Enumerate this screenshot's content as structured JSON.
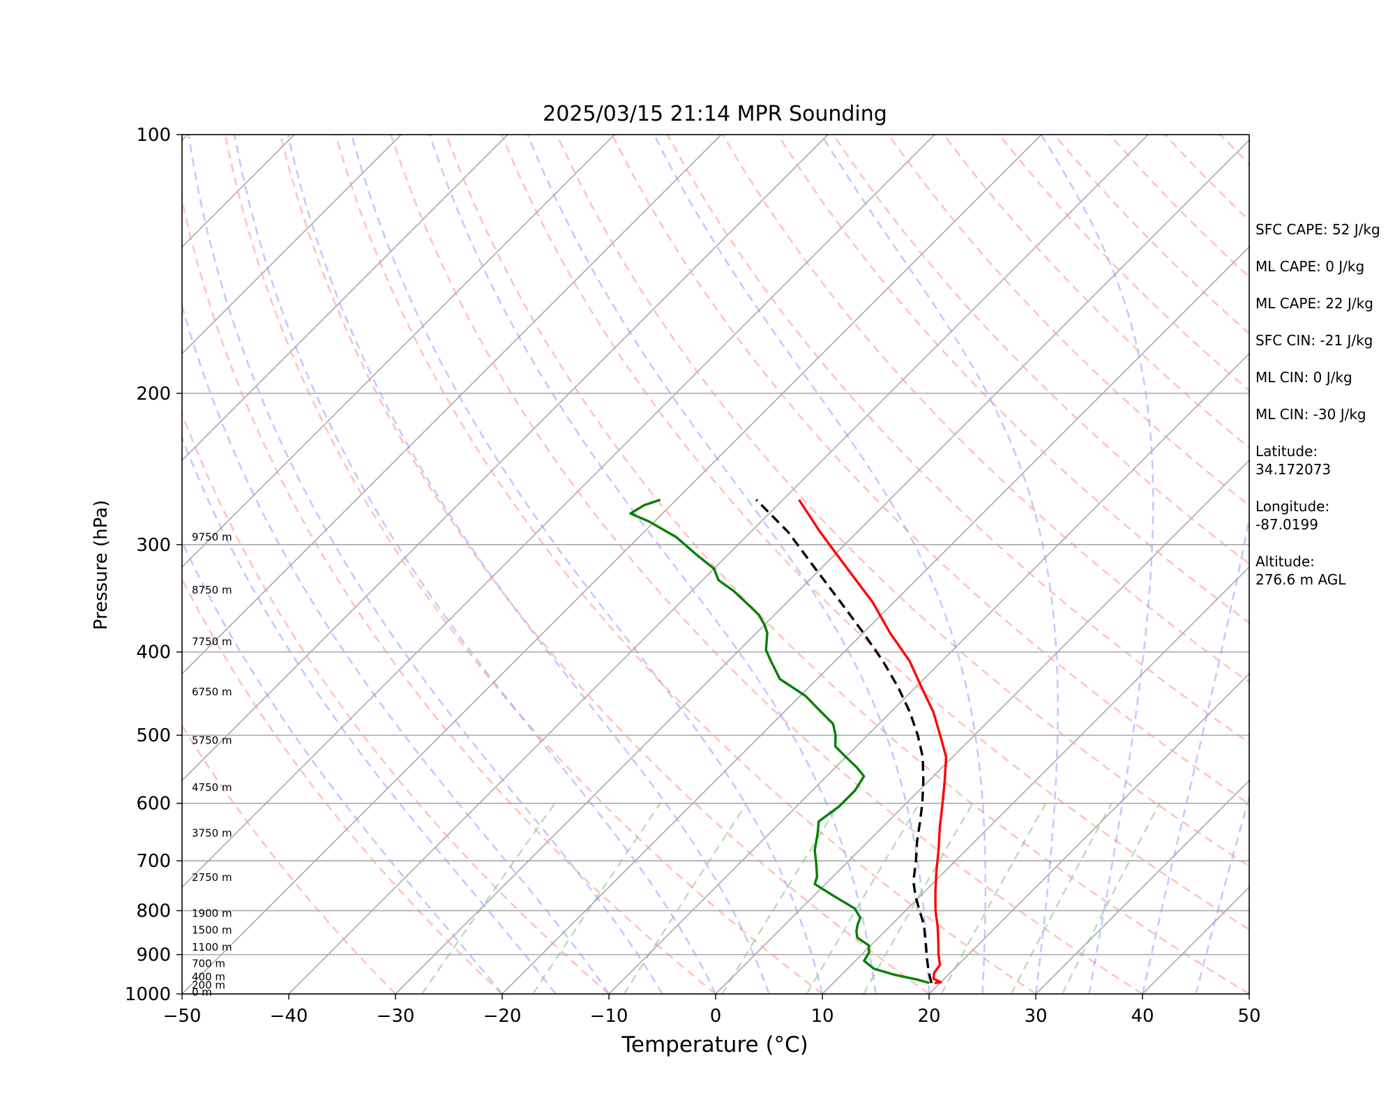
{
  "chart_data": {
    "type": "line",
    "title": "2025/03/15 21:14 MPR Sounding",
    "xlabel": "Temperature (°C)",
    "ylabel": "Pressure (hPa)",
    "xlim": [
      -50,
      50
    ],
    "ylim": [
      1000,
      100
    ],
    "y_scale": "log",
    "skew": true,
    "grid": true,
    "x_ticks": [
      "−50",
      "−40",
      "−30",
      "−20",
      "−10",
      "0",
      "10",
      "20",
      "30",
      "40",
      "50"
    ],
    "y_ticks": [
      "100",
      "200",
      "300",
      "400",
      "500",
      "600",
      "700",
      "800",
      "900",
      "1000"
    ],
    "height_labels": [
      {
        "label": "0 m",
        "p": 995
      },
      {
        "label": "200 m",
        "p": 977
      },
      {
        "label": "400 m",
        "p": 955
      },
      {
        "label": "700 m",
        "p": 922
      },
      {
        "label": "1100 m",
        "p": 882
      },
      {
        "label": "1500 m",
        "p": 843
      },
      {
        "label": "1900 m",
        "p": 806
      },
      {
        "label": "2750 m",
        "p": 732
      },
      {
        "label": "3750 m",
        "p": 650
      },
      {
        "label": "4750 m",
        "p": 575
      },
      {
        "label": "5750 m",
        "p": 507
      },
      {
        "label": "6750 m",
        "p": 445
      },
      {
        "label": "7750 m",
        "p": 389
      },
      {
        "label": "8750 m",
        "p": 339
      },
      {
        "label": "9750 m",
        "p": 294
      }
    ],
    "series": [
      {
        "role": "temperature",
        "color": "#ff0000",
        "points": [
          [
            19.5,
            971
          ],
          [
            20.0,
            969
          ],
          [
            19.0,
            960
          ],
          [
            18.5,
            945
          ],
          [
            18.3,
            925
          ],
          [
            17.2,
            900
          ],
          [
            16.0,
            870
          ],
          [
            14.5,
            835
          ],
          [
            12.8,
            800
          ],
          [
            11.0,
            760
          ],
          [
            9.2,
            720
          ],
          [
            7.4,
            680
          ],
          [
            5.4,
            640
          ],
          [
            3.4,
            600
          ],
          [
            1.5,
            565
          ],
          [
            -0.6,
            530
          ],
          [
            -3.2,
            500
          ],
          [
            -6.0,
            470
          ],
          [
            -9.4,
            440
          ],
          [
            -13.0,
            410
          ],
          [
            -17.5,
            380
          ],
          [
            -22.0,
            350
          ],
          [
            -27.5,
            320
          ],
          [
            -33.5,
            290
          ],
          [
            -38.5,
            266
          ]
        ]
      },
      {
        "role": "dewpoint",
        "color": "#007f00",
        "points": [
          [
            19.0,
            971
          ],
          [
            17.5,
            962
          ],
          [
            15.0,
            950
          ],
          [
            12.5,
            935
          ],
          [
            10.8,
            915
          ],
          [
            10.5,
            895
          ],
          [
            9.8,
            878
          ],
          [
            8.0,
            860
          ],
          [
            7.3,
            845
          ],
          [
            6.8,
            830
          ],
          [
            6.4,
            815
          ],
          [
            5.0,
            795
          ],
          [
            2.0,
            770
          ],
          [
            -1.0,
            745
          ],
          [
            -1.5,
            730
          ],
          [
            -2.8,
            705
          ],
          [
            -4.2,
            680
          ],
          [
            -5.5,
            650
          ],
          [
            -6.5,
            630
          ],
          [
            -6.0,
            605
          ],
          [
            -6.0,
            580
          ],
          [
            -6.5,
            558
          ],
          [
            -8.0,
            545
          ],
          [
            -10.0,
            530
          ],
          [
            -12.0,
            515
          ],
          [
            -13.0,
            500
          ],
          [
            -14.3,
            485
          ],
          [
            -16.5,
            470
          ],
          [
            -19.5,
            450
          ],
          [
            -23.5,
            430
          ],
          [
            -26.0,
            410
          ],
          [
            -27.5,
            398
          ],
          [
            -29.0,
            380
          ],
          [
            -30.0,
            372
          ],
          [
            -31.5,
            362
          ],
          [
            -33.5,
            352
          ],
          [
            -36.0,
            340
          ],
          [
            -38.5,
            330
          ],
          [
            -40.0,
            320
          ],
          [
            -43.0,
            308
          ],
          [
            -46.5,
            294
          ],
          [
            -50.5,
            282
          ],
          [
            -53.0,
            276
          ],
          [
            -52.5,
            270
          ],
          [
            -51.5,
            266
          ]
        ]
      },
      {
        "role": "parcel",
        "color": "#000000",
        "dashed": true,
        "points": [
          [
            19.2,
            971
          ],
          [
            18.0,
            945
          ],
          [
            16.5,
            910
          ],
          [
            14.8,
            870
          ],
          [
            13.0,
            830
          ],
          [
            11.3,
            800
          ],
          [
            9.6,
            770
          ],
          [
            8.0,
            740
          ],
          [
            6.3,
            700
          ],
          [
            4.6,
            665
          ],
          [
            3.0,
            630
          ],
          [
            1.5,
            600
          ],
          [
            -0.5,
            565
          ],
          [
            -2.8,
            530
          ],
          [
            -5.3,
            500
          ],
          [
            -8.2,
            470
          ],
          [
            -11.6,
            440
          ],
          [
            -15.5,
            410
          ],
          [
            -20.0,
            380
          ],
          [
            -25.0,
            350
          ],
          [
            -30.5,
            320
          ],
          [
            -36.5,
            290
          ],
          [
            -42.5,
            266
          ]
        ]
      }
    ]
  },
  "stats": [
    "SFC CAPE: 52 J/kg",
    "ML CAPE: 0 J/kg",
    "ML CAPE: 22 J/kg",
    "SFC CIN: -21 J/kg",
    "ML CIN: 0 J/kg",
    "ML CIN: -30 J/kg",
    "Latitude:\n34.172073",
    "Longitude:\n-87.0199",
    "Altitude:\n276.6 m AGL"
  ]
}
